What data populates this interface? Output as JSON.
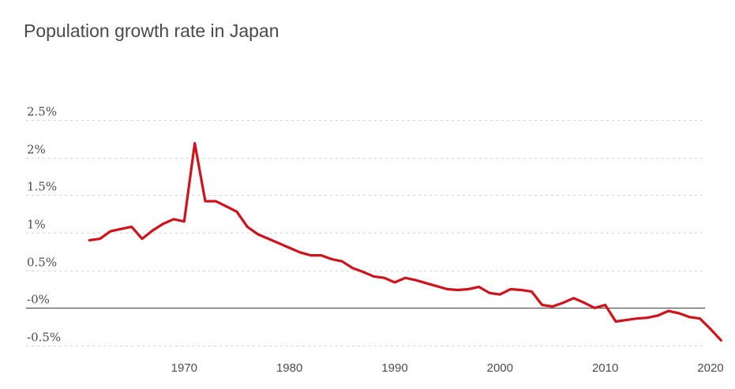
{
  "chart_data": {
    "type": "line",
    "title": "Population growth rate in Japan",
    "xlabel": "",
    "ylabel": "",
    "xlim": [
      1960,
      2022
    ],
    "ylim": [
      -0.5,
      2.5
    ],
    "grid": true,
    "y_ticks": [
      {
        "value": 2.5,
        "label": "2.5%"
      },
      {
        "value": 2.0,
        "label": "2%"
      },
      {
        "value": 1.5,
        "label": "1.5%"
      },
      {
        "value": 1.0,
        "label": "1%"
      },
      {
        "value": 0.5,
        "label": "0.5%"
      },
      {
        "value": 0.0,
        "label": "-0%"
      },
      {
        "value": -0.5,
        "label": "-0.5%"
      }
    ],
    "x_ticks": [
      {
        "value": 1970,
        "label": "1970"
      },
      {
        "value": 1980,
        "label": "1980"
      },
      {
        "value": 1990,
        "label": "1990"
      },
      {
        "value": 2000,
        "label": "2000"
      },
      {
        "value": 2010,
        "label": "2010"
      },
      {
        "value": 2020,
        "label": "2020"
      }
    ],
    "color": "#d0121b",
    "series": [
      {
        "x": [
          1961,
          1962,
          1963,
          1964,
          1965,
          1966,
          1967,
          1968,
          1969,
          1970,
          1971,
          1972,
          1973,
          1974,
          1975,
          1976,
          1977,
          1978,
          1979,
          1980,
          1981,
          1982,
          1983,
          1984,
          1985,
          1986,
          1987,
          1988,
          1989,
          1990,
          1991,
          1992,
          1993,
          1994,
          1995,
          1996,
          1997,
          1998,
          1999,
          2000,
          2001,
          2002,
          2003,
          2004,
          2005,
          2006,
          2007,
          2008,
          2009,
          2010,
          2011,
          2012,
          2013,
          2014,
          2015,
          2016,
          2017,
          2018,
          2019,
          2020,
          2021
        ],
        "y": [
          0.9,
          0.92,
          1.02,
          1.05,
          1.08,
          0.92,
          1.03,
          1.12,
          1.18,
          1.15,
          2.19,
          1.42,
          1.42,
          1.35,
          1.28,
          1.08,
          0.98,
          0.92,
          0.86,
          0.8,
          0.74,
          0.7,
          0.7,
          0.65,
          0.62,
          0.53,
          0.48,
          0.42,
          0.4,
          0.34,
          0.4,
          0.37,
          0.33,
          0.29,
          0.25,
          0.24,
          0.25,
          0.28,
          0.2,
          0.18,
          0.25,
          0.24,
          0.22,
          0.04,
          0.02,
          0.07,
          0.13,
          0.07,
          0.0,
          0.04,
          -0.18,
          -0.16,
          -0.14,
          -0.13,
          -0.1,
          -0.04,
          -0.07,
          -0.12,
          -0.14,
          -0.28,
          -0.43
        ]
      }
    ]
  }
}
